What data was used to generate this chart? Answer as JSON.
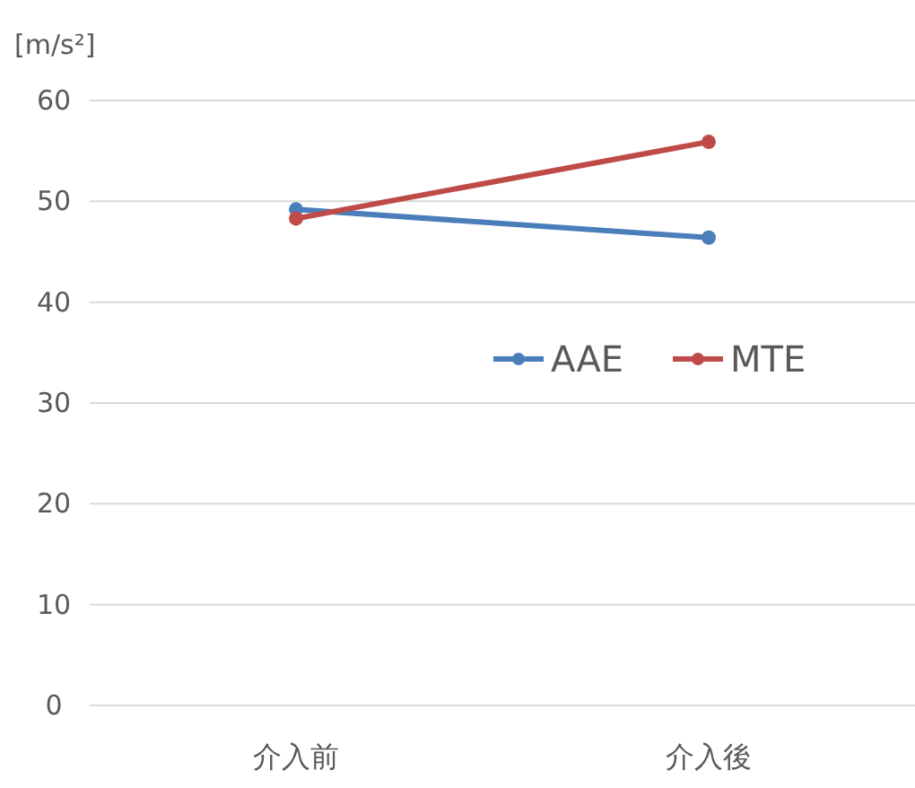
{
  "chart_data": {
    "type": "line",
    "ylabel": "[m/s²]",
    "categories": [
      "介入前",
      "介入後"
    ],
    "series": [
      {
        "name": "AAE",
        "color": "#4a7ebb",
        "values": [
          49.2,
          46.4
        ]
      },
      {
        "name": "MTE",
        "color": "#be4b48",
        "values": [
          48.3,
          55.9
        ]
      }
    ],
    "ylim": [
      0,
      60
    ],
    "yticks": [
      0,
      10,
      20,
      30,
      40,
      50,
      60
    ],
    "grid": "y",
    "legend": "right",
    "marker": "circle",
    "line_style": "solid"
  }
}
